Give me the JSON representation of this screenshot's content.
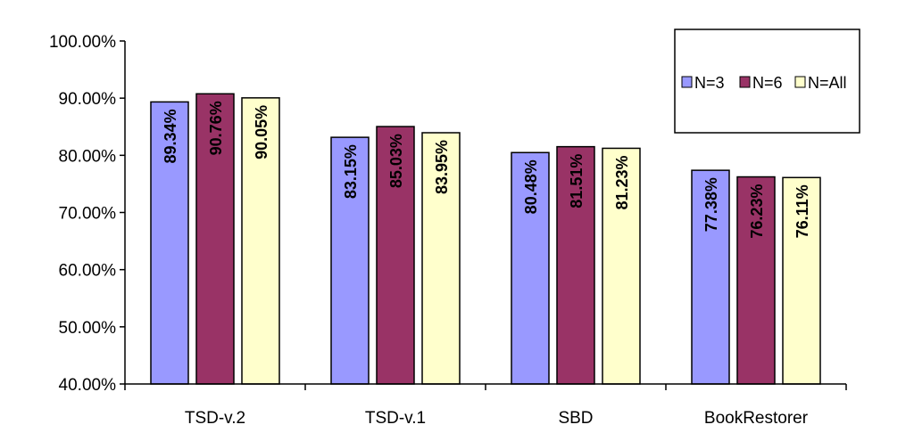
{
  "chart_data": {
    "type": "bar",
    "categories": [
      "TSD-v.2",
      "TSD-v.1",
      "SBD",
      "BookRestorer"
    ],
    "series": [
      {
        "name": "N=3",
        "color": "#9999ff",
        "values": [
          89.34,
          83.15,
          80.48,
          77.38
        ],
        "labels": [
          "89.34%",
          "83.15%",
          "80.48%",
          "77.38%"
        ]
      },
      {
        "name": "N=6",
        "color": "#993366",
        "values": [
          90.76,
          85.03,
          81.51,
          76.23
        ],
        "labels": [
          "90.76%",
          "85.03%",
          "81.51%",
          "76.23%"
        ]
      },
      {
        "name": "N=All",
        "color": "#ffffcc",
        "values": [
          90.05,
          83.95,
          81.23,
          76.11
        ],
        "labels": [
          "90.05%",
          "83.95%",
          "81.23%",
          "76.11%"
        ]
      }
    ],
    "yticks": [
      "40.00%",
      "50.00%",
      "60.00%",
      "70.00%",
      "80.00%",
      "90.00%",
      "100.00%"
    ],
    "ylim": [
      40,
      100
    ],
    "grid": false,
    "legend": "top-right",
    "title": "",
    "xlabel": "",
    "ylabel": ""
  }
}
